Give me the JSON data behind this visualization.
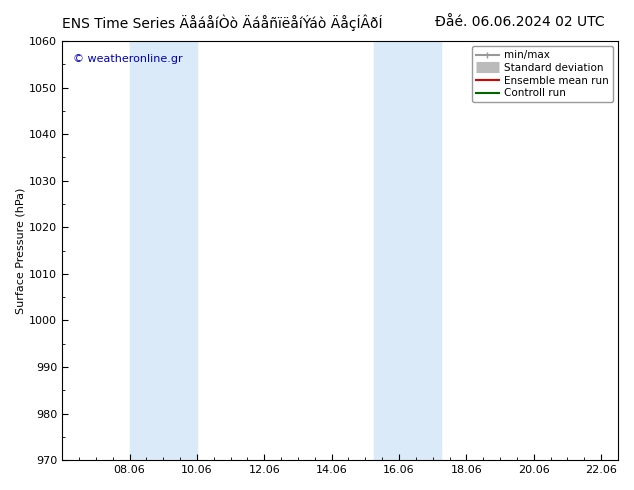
{
  "title": "ENS Time Series ÄåáåíÒò ÄáåñïëåíÝáò ÄåçÍÂðÍ",
  "title_str": "ENS Time Series ÄåáåíÒò ÄáåñïëåíÝáò ÄåçÍÂðÍ",
  "title_right": "Ðåé. 06.06.2024 02 UTC",
  "ylabel": "Surface Pressure (hPa)",
  "ylim": [
    970,
    1060
  ],
  "yticks": [
    970,
    980,
    990,
    1000,
    1010,
    1020,
    1030,
    1040,
    1050,
    1060
  ],
  "xlim": [
    0.0,
    16.5
  ],
  "xtick_labels": [
    "08.06",
    "10.06",
    "12.06",
    "14.06",
    "16.06",
    "18.06",
    "20.06",
    "22.06"
  ],
  "xtick_positions": [
    2.0,
    4.0,
    6.0,
    8.0,
    10.0,
    12.0,
    14.0,
    16.0
  ],
  "shade_bands": [
    {
      "x_start": 2.0,
      "x_end": 4.0,
      "color": "#daeaf8"
    },
    {
      "x_start": 9.25,
      "x_end": 11.25,
      "color": "#daeaf8"
    }
  ],
  "watermark": "© weatheronline.gr",
  "watermark_color": "#0000bb",
  "legend_entries": [
    {
      "label": "min/max",
      "color": "#999999",
      "lw": 1.5,
      "type": "line_ticks"
    },
    {
      "label": "Standard deviation",
      "color": "#bbbbbb",
      "lw": 8,
      "type": "thick_line"
    },
    {
      "label": "Ensemble mean run",
      "color": "#dd0000",
      "lw": 1.5,
      "type": "line"
    },
    {
      "label": "Controll run",
      "color": "#006600",
      "lw": 1.5,
      "type": "line"
    }
  ],
  "bg_color": "#ffffff",
  "plot_bg_color": "#ffffff",
  "border_color": "#000000",
  "title_fontsize": 10,
  "axis_fontsize": 8,
  "tick_fontsize": 8,
  "legend_fontsize": 7.5
}
